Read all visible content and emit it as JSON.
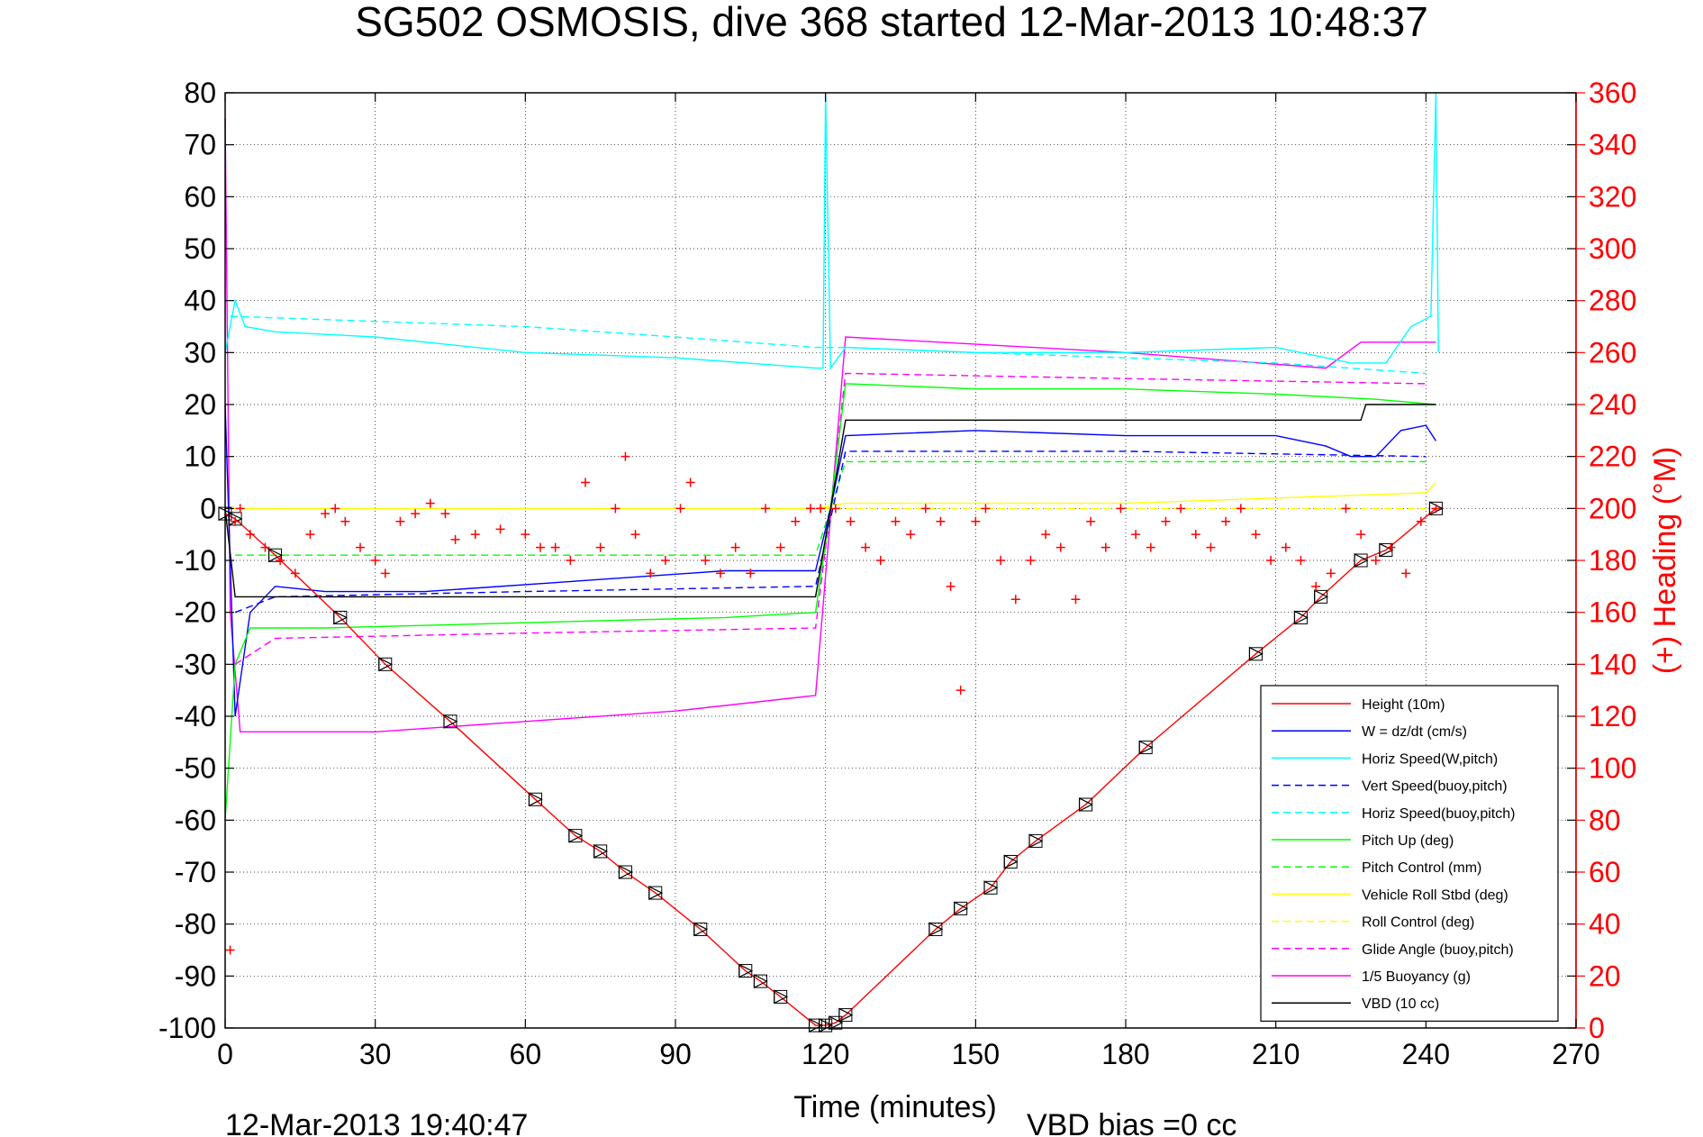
{
  "chart_data": {
    "type": "line",
    "title": "SG502 OSMOSIS, dive 368 started 12-Mar-2013 10:48:37",
    "xlabel": "Time (minutes)",
    "ylabel_right": "(+) Heading (°M)",
    "xlim": [
      0,
      270
    ],
    "ylim_left": [
      -100,
      80
    ],
    "ylim_right": [
      0,
      360
    ],
    "x_ticks": [
      "0",
      "30",
      "60",
      "90",
      "120",
      "150",
      "180",
      "210",
      "240",
      "270"
    ],
    "y_ticks_left": [
      "80",
      "70",
      "60",
      "50",
      "40",
      "30",
      "20",
      "10",
      "0",
      "-10",
      "-20",
      "-30",
      "-40",
      "-50",
      "-60",
      "-70",
      "-80",
      "-90",
      "-100"
    ],
    "y_ticks_right": [
      "360",
      "340",
      "320",
      "300",
      "280",
      "260",
      "240",
      "220",
      "200",
      "180",
      "160",
      "140",
      "120",
      "100",
      "80",
      "60",
      "40",
      "20",
      "0"
    ],
    "grid": true,
    "legend_position": "bottom-right",
    "footer_left": "12-Mar-2013 19:40:47",
    "footer_right": "VBD bias =0 cc",
    "series": [
      {
        "name": "Height (10m)",
        "color": "#ff0000",
        "style": "solid",
        "x": [
          0,
          2,
          10,
          23,
          32,
          45,
          62,
          70,
          75,
          80,
          86,
          95,
          104,
          107,
          111,
          118,
          120,
          122,
          124,
          142,
          147,
          153,
          157,
          162,
          172,
          184,
          206,
          215,
          219,
          227,
          232,
          242
        ],
        "values": [
          -1,
          -2,
          -9,
          -21,
          -30,
          -41,
          -56,
          -63,
          -66,
          -70,
          -74,
          -81,
          -89,
          -91,
          -94,
          -99.5,
          -99.5,
          -99,
          -97.5,
          -81,
          -77,
          -73,
          -68,
          -64,
          -57,
          -46,
          -28,
          -21,
          -17,
          -10,
          -8,
          0
        ]
      },
      {
        "name": "W = dz/dt (cm/s)",
        "color": "#0000ff",
        "style": "solid",
        "x": [
          0,
          2,
          5,
          10,
          20,
          40,
          70,
          100,
          118,
          121,
          124,
          150,
          180,
          210,
          220,
          225,
          230,
          235,
          240,
          242
        ],
        "values": [
          20,
          -40,
          -20,
          -15,
          -16,
          -16,
          -14,
          -12,
          -12,
          0,
          14,
          15,
          14,
          14,
          12,
          10,
          10,
          15,
          16,
          13
        ]
      },
      {
        "name": "Horiz Speed(W,pitch)",
        "color": "#00ffff",
        "style": "solid",
        "x": [
          0,
          2,
          4,
          10,
          30,
          60,
          90,
          118,
          119.5,
          120,
          121,
          124,
          150,
          180,
          210,
          225,
          232,
          237,
          241,
          242,
          242.5
        ],
        "values": [
          30,
          40,
          35,
          34,
          33,
          30,
          29,
          27,
          27,
          80,
          27,
          31,
          30,
          30,
          31,
          28,
          28,
          35,
          37,
          80,
          30
        ]
      },
      {
        "name": "Vert Speed(buoy,pitch)",
        "color": "#0000ff",
        "style": "dashed",
        "x": [
          2,
          10,
          60,
          118,
          124,
          180,
          240
        ],
        "values": [
          -20,
          -17,
          -16,
          -15,
          11,
          11,
          10
        ]
      },
      {
        "name": "Horiz Speed(buoy,pitch)",
        "color": "#00ffff",
        "style": "dashed",
        "x": [
          1,
          30,
          60,
          90,
          118,
          124,
          150,
          180,
          210,
          240
        ],
        "values": [
          37,
          36,
          35,
          33,
          31,
          31,
          30,
          29,
          28,
          26
        ]
      },
      {
        "name": "Pitch Up (deg)",
        "color": "#00ff00",
        "style": "solid",
        "x": [
          0,
          2,
          5,
          20,
          60,
          100,
          118,
          121,
          124,
          150,
          180,
          210,
          230,
          242
        ],
        "values": [
          -60,
          -30,
          -23,
          -23,
          -22,
          -21,
          -20,
          0,
          24,
          23,
          23,
          22,
          21,
          20
        ]
      },
      {
        "name": "Pitch Control (mm)",
        "color": "#00ff00",
        "style": "dashed",
        "x": [
          2,
          118,
          121,
          124,
          240
        ],
        "values": [
          -9,
          -9,
          0,
          9,
          9
        ]
      },
      {
        "name": "Vehicle Roll Stbd (deg)",
        "color": "#ffff00",
        "style": "solid",
        "x": [
          0,
          5,
          60,
          118,
          124,
          180,
          240,
          242
        ],
        "values": [
          0,
          0,
          0,
          0,
          1,
          1,
          3,
          5
        ]
      },
      {
        "name": "Roll Control (deg)",
        "color": "#ffff00",
        "style": "dashed",
        "x": [
          0,
          120,
          240
        ],
        "values": [
          0,
          0,
          0
        ]
      },
      {
        "name": "Glide Angle (buoy,pitch)",
        "color": "#ff00ff",
        "style": "dashed",
        "x": [
          2,
          10,
          60,
          118,
          121,
          124,
          180,
          240
        ],
        "values": [
          -30,
          -25,
          -24,
          -23,
          0,
          26,
          25,
          24
        ]
      },
      {
        "name": "1/5 Buoyancy (g)",
        "color": "#ff00ff",
        "style": "solid",
        "x": [
          0,
          1,
          3,
          30,
          60,
          90,
          118,
          124,
          180,
          220,
          227,
          242
        ],
        "values": [
          75,
          -20,
          -43,
          -43,
          -41,
          -39,
          -36,
          33,
          30,
          27,
          32,
          32
        ]
      },
      {
        "name": "VBD (10 cc)",
        "color": "#000000",
        "style": "solid",
        "x": [
          0,
          2,
          5,
          10,
          118,
          124,
          227,
          228,
          242
        ],
        "values": [
          0,
          -17,
          -17,
          -17,
          -17,
          17,
          17,
          20,
          20
        ]
      }
    ],
    "heading_series": {
      "name": "Heading",
      "axis": "right",
      "color": "#ff0000",
      "marker": "+",
      "x": [
        1,
        2,
        3,
        5,
        8,
        11,
        14,
        17,
        20,
        22,
        24,
        27,
        30,
        32,
        35,
        38,
        41,
        44,
        46,
        50,
        55,
        60,
        63,
        66,
        69,
        72,
        75,
        78,
        80,
        82,
        85,
        88,
        91,
        93,
        96,
        99,
        102,
        105,
        108,
        111,
        114,
        117,
        119,
        122,
        125,
        128,
        131,
        134,
        137,
        140,
        143,
        145,
        147,
        150,
        152,
        155,
        158,
        161,
        164,
        167,
        170,
        173,
        176,
        179,
        182,
        185,
        188,
        191,
        194,
        197,
        200,
        203,
        206,
        209,
        212,
        215,
        218,
        221,
        224,
        227,
        230,
        233,
        236,
        239,
        242
      ],
      "values": [
        30,
        195,
        200,
        190,
        185,
        180,
        175,
        190,
        198,
        200,
        195,
        185,
        180,
        175,
        195,
        198,
        202,
        198,
        188,
        190,
        192,
        190,
        185,
        185,
        180,
        210,
        185,
        200,
        220,
        190,
        175,
        180,
        200,
        210,
        180,
        175,
        185,
        175,
        200,
        185,
        195,
        200,
        200,
        200,
        195,
        185,
        180,
        195,
        190,
        200,
        195,
        170,
        130,
        195,
        200,
        180,
        165,
        180,
        190,
        185,
        165,
        195,
        185,
        200,
        190,
        185,
        195,
        200,
        190,
        185,
        195,
        200,
        190,
        180,
        185,
        180,
        170,
        175,
        200,
        190,
        180,
        185,
        175,
        195,
        200
      ]
    }
  }
}
